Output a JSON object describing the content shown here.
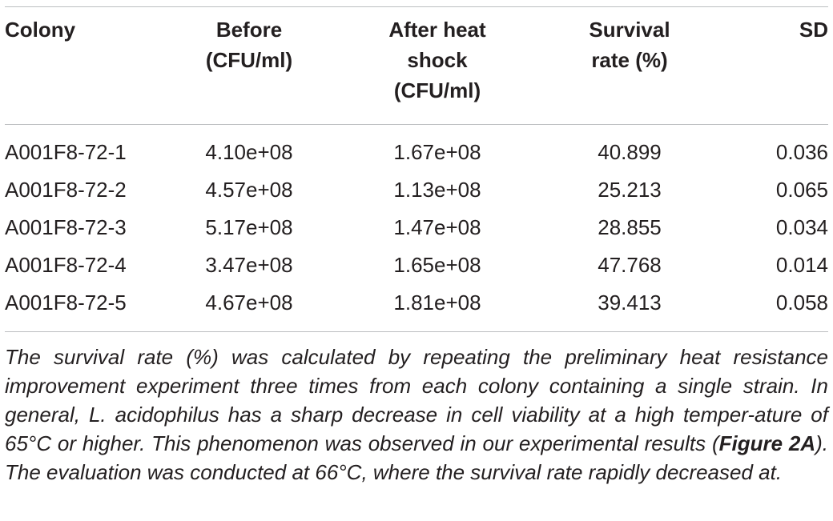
{
  "table": {
    "headers": {
      "colony": "Colony",
      "before_line1": "Before",
      "before_line2": "(CFU/ml)",
      "after_line1": "After heat",
      "after_line2": "shock",
      "after_line3": "(CFU/ml)",
      "survival_line1": "Survival",
      "survival_line2": "rate (%)",
      "sd": "SD"
    },
    "rows": [
      {
        "colony": "A001F8-72-1",
        "before": "4.10e+08",
        "after": "1.67e+08",
        "survival": "40.899",
        "sd": "0.036"
      },
      {
        "colony": "A001F8-72-2",
        "before": "4.57e+08",
        "after": "1.13e+08",
        "survival": "25.213",
        "sd": "0.065"
      },
      {
        "colony": "A001F8-72-3",
        "before": "5.17e+08",
        "after": "1.47e+08",
        "survival": "28.855",
        "sd": "0.034"
      },
      {
        "colony": "A001F8-72-4",
        "before": "3.47e+08",
        "after": "1.65e+08",
        "survival": "47.768",
        "sd": "0.014"
      },
      {
        "colony": "A001F8-72-5",
        "before": "4.67e+08",
        "after": "1.81e+08",
        "survival": "39.413",
        "sd": "0.058"
      }
    ]
  },
  "footnote": {
    "text_before_ref": "The survival rate (%) was calculated by repeating the preliminary heat resistance improvement experiment three times from each colony containing a single strain. In general, L. acidophilus has a sharp decrease in cell viability at a high temper-ature of 65°C or higher. This phenomenon was observed in our experimental results (",
    "figure_ref": "Figure 2A",
    "text_after_ref": "). The evaluation was conducted at 66°C, where the survival rate rapidly decreased at."
  }
}
